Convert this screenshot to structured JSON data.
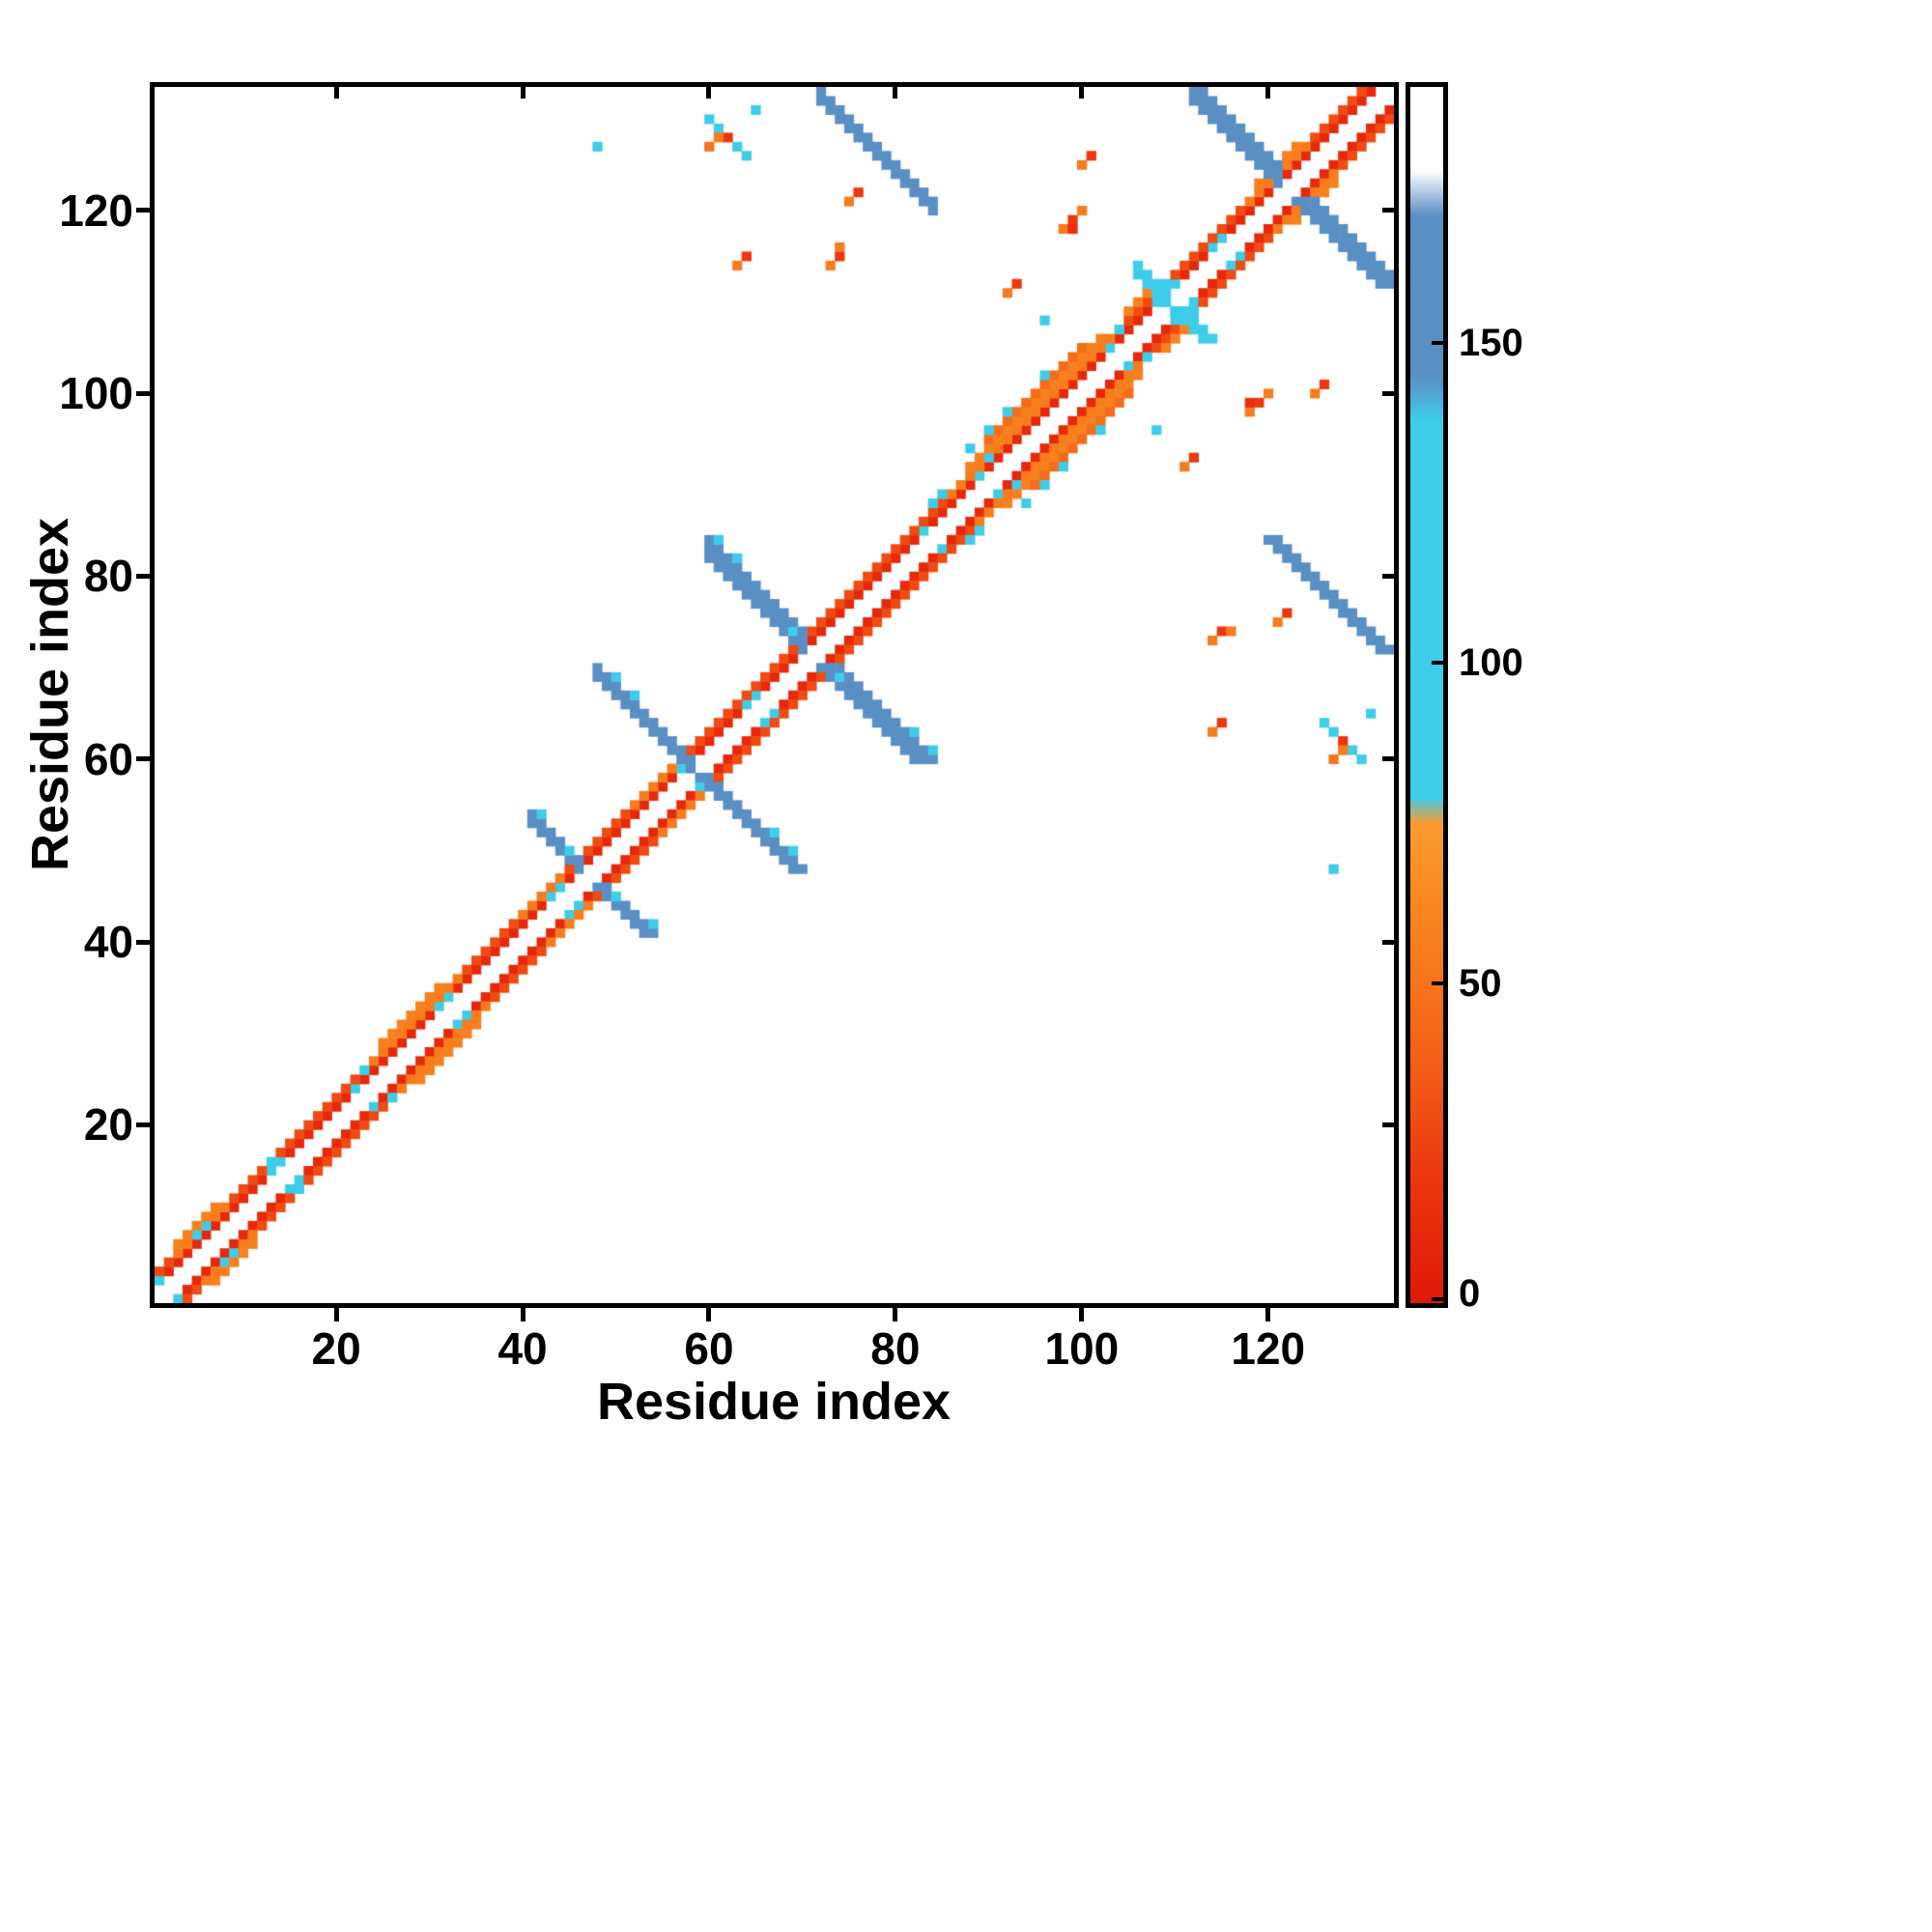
{
  "chart_data": {
    "type": "heatmap",
    "title": "",
    "xlabel": "Residue index",
    "ylabel": "Residue index",
    "n_residues": 133,
    "x_range": [
      1,
      133
    ],
    "y_range": [
      1,
      133
    ],
    "x_ticks": [
      20,
      40,
      60,
      80,
      100,
      120
    ],
    "y_ticks": [
      20,
      40,
      60,
      80,
      100,
      120
    ],
    "background": "#ffffff",
    "symmetric": true,
    "colorbar": {
      "ticks": [
        0,
        50,
        100,
        150
      ],
      "vmax": 190,
      "position": "right"
    },
    "colormap": {
      "stops": [
        [
          0,
          "#e0180a"
        ],
        [
          20,
          "#ec380e"
        ],
        [
          32,
          "#f15414"
        ],
        [
          48,
          "#f6711b"
        ],
        [
          64,
          "#f98a22"
        ],
        [
          75,
          "#fa9a30"
        ],
        [
          79,
          "#3ecde9"
        ],
        [
          138,
          "#3ecde9"
        ],
        [
          145,
          "#5a8fc4"
        ],
        [
          170,
          "#5a8fc4"
        ],
        [
          177,
          "#ffffff"
        ],
        [
          190,
          "#ffffff"
        ]
      ]
    },
    "features": [
      {
        "kind": "band",
        "offset": 2,
        "from": 1,
        "to": 131,
        "value": 10
      },
      {
        "kind": "band",
        "offset": 3,
        "from": 1,
        "to": 130,
        "value": 28
      },
      {
        "kind": "band",
        "offset": 3,
        "from": 3,
        "to": 8,
        "value": 55
      },
      {
        "kind": "band",
        "offset": 3,
        "from": 24,
        "to": 33,
        "value": 55
      },
      {
        "kind": "band",
        "offset": 3,
        "from": 40,
        "to": 44,
        "value": 55
      },
      {
        "kind": "band",
        "offset": 3,
        "from": 52,
        "to": 56,
        "value": 55
      },
      {
        "kind": "band",
        "offset": 3,
        "from": 86,
        "to": 104,
        "value": 55
      },
      {
        "kind": "band",
        "offset": 3,
        "from": 118,
        "to": 124,
        "value": 55
      },
      {
        "kind": "band",
        "offset": 4,
        "from": 3,
        "to": 7,
        "value": 58
      },
      {
        "kind": "band",
        "offset": 4,
        "from": 25,
        "to": 31,
        "value": 58
      },
      {
        "kind": "band",
        "offset": 4,
        "from": 88,
        "to": 102,
        "value": 58
      },
      {
        "kind": "band",
        "offset": 4,
        "from": 105,
        "to": 107,
        "value": 58
      },
      {
        "kind": "band",
        "offset": 4,
        "from": 119,
        "to": 123,
        "value": 58
      },
      {
        "kind": "band",
        "offset": 5,
        "from": 90,
        "to": 100,
        "value": 45
      },
      {
        "kind": "anti",
        "sum": 94,
        "from": 41,
        "to": 46,
        "width": 2,
        "value": 152
      },
      {
        "kind": "anti",
        "sum": 117,
        "from": 48,
        "to": 58,
        "width": 2,
        "value": 150
      },
      {
        "kind": "anti",
        "sum": 142,
        "from": 60,
        "to": 70,
        "width": 3,
        "value": 152
      },
      {
        "kind": "anti",
        "sum": 204,
        "from": 72,
        "to": 84,
        "width": 2,
        "value": 152
      },
      {
        "kind": "anti",
        "sum": 244,
        "from": 112,
        "to": 121,
        "width": 3,
        "value": 152
      },
      {
        "kind": "anti",
        "sum": 219,
        "from": 106,
        "to": 111,
        "width": 2,
        "value": 105
      },
      {
        "kind": "anti",
        "sum": 190,
        "from": 60,
        "to": 64,
        "width": 1,
        "value": 100
      },
      {
        "kind": "cells",
        "list": [
          [
            1,
            3,
            100
          ],
          [
            5,
            8,
            100
          ],
          [
            6,
            9,
            100
          ],
          [
            13,
            15,
            100
          ],
          [
            13,
            16,
            100
          ],
          [
            14,
            16,
            100
          ],
          [
            22,
            24,
            100
          ],
          [
            23,
            26,
            100
          ],
          [
            31,
            33,
            100
          ],
          [
            32,
            34,
            100
          ],
          [
            43,
            45,
            100
          ],
          [
            44,
            46,
            100
          ],
          [
            57,
            59,
            100
          ],
          [
            64,
            66,
            100
          ],
          [
            65,
            67,
            100
          ],
          [
            83,
            85,
            100
          ],
          [
            84,
            88,
            100
          ],
          [
            85,
            89,
            100
          ],
          [
            89,
            91,
            100
          ],
          [
            90,
            93,
            100
          ],
          [
            96,
            102,
            100
          ],
          [
            103,
            105,
            100
          ],
          [
            104,
            107,
            100
          ],
          [
            108,
            110,
            100
          ],
          [
            109,
            112,
            100
          ],
          [
            110,
            112,
            100
          ],
          [
            114,
            116,
            100
          ],
          [
            115,
            117,
            100
          ],
          [
            88,
            94,
            100
          ],
          [
            90,
            96,
            100
          ],
          [
            92,
            98,
            100
          ],
          [
            42,
            54,
            100
          ],
          [
            45,
            50,
            100
          ],
          [
            50,
            69,
            100
          ],
          [
            52,
            67,
            100
          ],
          [
            61,
            84,
            100
          ],
          [
            63,
            82,
            100
          ],
          [
            69,
            74,
            100
          ],
          [
            48,
            127,
            100
          ],
          [
            60,
            127,
            50
          ],
          [
            61,
            128,
            55
          ],
          [
            62,
            128,
            18
          ],
          [
            63,
            114,
            55
          ],
          [
            64,
            115,
            20
          ],
          [
            73,
            114,
            55
          ],
          [
            74,
            115,
            20
          ],
          [
            74,
            116,
            55
          ],
          [
            92,
            111,
            55
          ],
          [
            93,
            112,
            20
          ],
          [
            96,
            108,
            100
          ],
          [
            98,
            118,
            55
          ],
          [
            99,
            118,
            15
          ],
          [
            99,
            119,
            20
          ],
          [
            100,
            120,
            55
          ],
          [
            75,
            121,
            55
          ],
          [
            76,
            122,
            20
          ],
          [
            65,
            131,
            100
          ],
          [
            100,
            125,
            55
          ],
          [
            101,
            126,
            20
          ]
        ]
      }
    ]
  }
}
